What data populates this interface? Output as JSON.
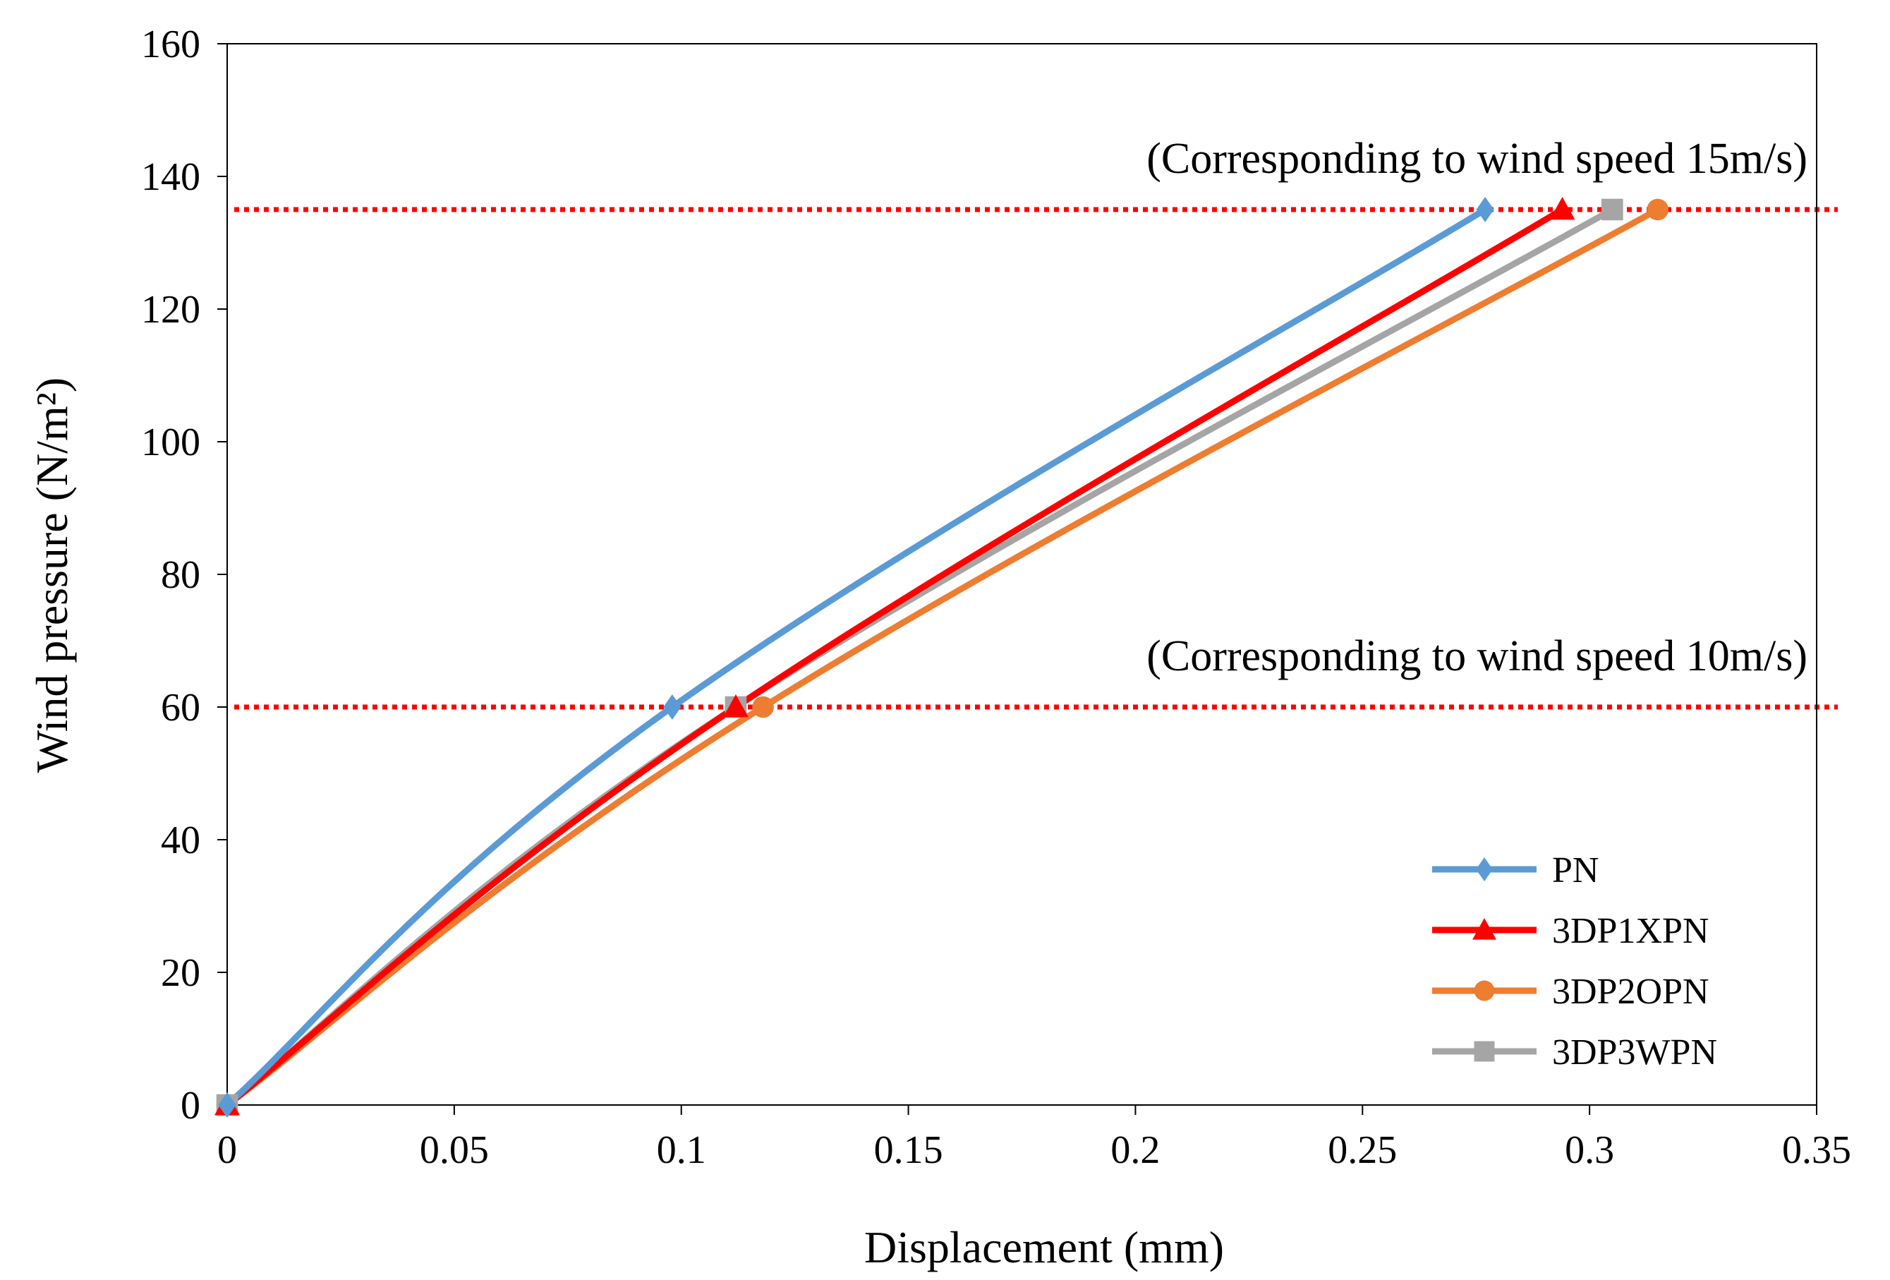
{
  "chart_data": {
    "type": "line",
    "title": "",
    "xlabel": "Displacement (mm)",
    "ylabel": "Wind pressure (N/m²)",
    "xlim": [
      0,
      0.35
    ],
    "ylim": [
      0,
      160
    ],
    "x_ticks": [
      0,
      0.05,
      0.1,
      0.15,
      0.2,
      0.25,
      0.3,
      0.35
    ],
    "x_tick_labels": [
      "0",
      "0.05",
      "0.1",
      "0.15",
      "0.2",
      "0.25",
      "0.3",
      "0.35"
    ],
    "y_ticks": [
      0,
      20,
      40,
      60,
      80,
      100,
      120,
      140,
      160
    ],
    "y_tick_labels": [
      "0",
      "20",
      "40",
      "60",
      "80",
      "100",
      "120",
      "140",
      "160"
    ],
    "grid": false,
    "legend_position": "bottom-right",
    "series": [
      {
        "name": "PN",
        "color": "#5b9bd5",
        "marker": "diamond",
        "x": [
          0,
          0.098,
          0.277
        ],
        "y": [
          0,
          60,
          135
        ]
      },
      {
        "name": "3DP1XPN",
        "color": "#ff0000",
        "marker": "triangle",
        "x": [
          0,
          0.112,
          0.294
        ],
        "y": [
          0,
          60,
          135
        ]
      },
      {
        "name": "3DP2OPN",
        "color": "#ed7d31",
        "marker": "circle",
        "x": [
          0,
          0.118,
          0.315
        ],
        "y": [
          0,
          60,
          135
        ]
      },
      {
        "name": "3DP3WPN",
        "color": "#a5a5a5",
        "marker": "square",
        "x": [
          0,
          0.112,
          0.305
        ],
        "y": [
          0,
          60,
          135
        ]
      }
    ],
    "reference_lines": [
      {
        "y": 135,
        "label": "(Corresponding to wind speed 15m/s)",
        "color": "#ff0000"
      },
      {
        "y": 60,
        "label": "(Corresponding to wind speed 10m/s)",
        "color": "#ff0000"
      }
    ]
  }
}
